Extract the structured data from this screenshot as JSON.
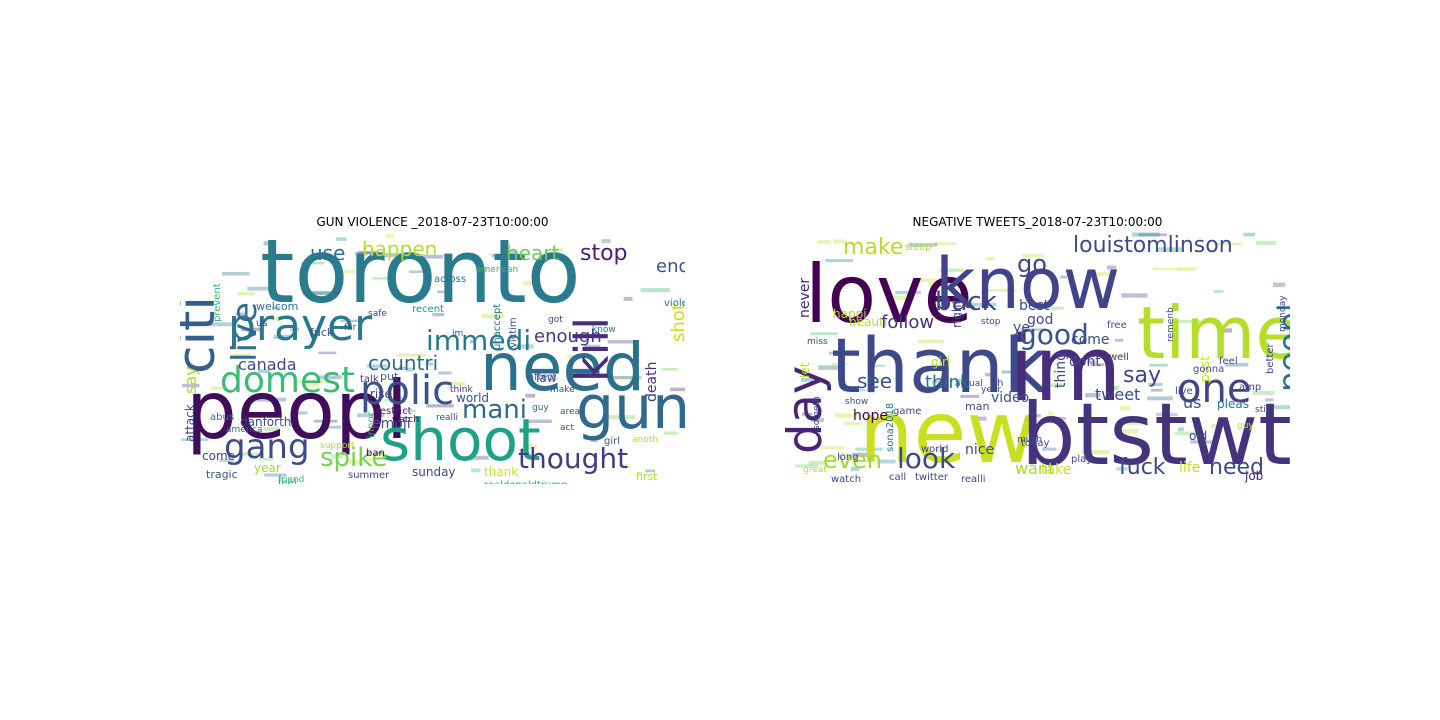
{
  "figure": {
    "left": {
      "title": "GUN VIOLENCE _2018-07-23T10:00:00",
      "words": [
        {
          "text": "toronto",
          "color": "#2a7b8e"
        },
        {
          "text": "peopl",
          "color": "#3f0e5a"
        },
        {
          "text": "shoot",
          "color": "#1fa187"
        },
        {
          "text": "need",
          "color": "#2d708e"
        },
        {
          "text": "citi",
          "color": "#35608d"
        },
        {
          "text": "prayer",
          "color": "#2a788e"
        },
        {
          "text": "gun",
          "color": "#31688e"
        },
        {
          "text": "polic",
          "color": "#3b528b"
        },
        {
          "text": "domest",
          "color": "#3cbb75"
        },
        {
          "text": "live",
          "color": "#2e6e8e"
        },
        {
          "text": "gang",
          "color": "#3e4a89"
        },
        {
          "text": "kill",
          "color": "#472d7b"
        },
        {
          "text": "immedi",
          "color": "#2a788e"
        },
        {
          "text": "thought",
          "color": "#443983"
        },
        {
          "text": "spike",
          "color": "#7ad151"
        },
        {
          "text": "mani",
          "color": "#31688e"
        },
        {
          "text": "happen",
          "color": "#b5de2b"
        },
        {
          "text": "heart",
          "color": "#6ccd5a"
        },
        {
          "text": "stop",
          "color": "#482173"
        },
        {
          "text": "use",
          "color": "#2c728e"
        },
        {
          "text": "enough",
          "color": "#443983"
        },
        {
          "text": "countri",
          "color": "#31688e"
        },
        {
          "text": "canada",
          "color": "#3e4989"
        },
        {
          "text": "shot",
          "color": "#c8e020"
        },
        {
          "text": "end",
          "color": "#3b528b"
        },
        {
          "text": "say",
          "color": "#a5db36"
        },
        {
          "text": "death",
          "color": "#46337e"
        },
        {
          "text": "emoji",
          "color": "#3b528b"
        },
        {
          "text": "come",
          "color": "#414487"
        },
        {
          "text": "year",
          "color": "#a0da39"
        },
        {
          "text": "sunday",
          "color": "#3e4989"
        },
        {
          "text": "danforth",
          "color": "#3e4a89"
        },
        {
          "text": "rise",
          "color": "#414487"
        },
        {
          "text": "world",
          "color": "#3b528b"
        },
        {
          "text": "law",
          "color": "#3e4989"
        },
        {
          "text": "thank",
          "color": "#d0e11c"
        },
        {
          "text": "tragic",
          "color": "#3b528b"
        },
        {
          "text": "realdonaldtrump",
          "color": "#27ad81"
        },
        {
          "text": "summer",
          "color": "#414487"
        },
        {
          "text": "first",
          "color": "#addc30"
        },
        {
          "text": "attack",
          "color": "#3e4989"
        },
        {
          "text": "innoc",
          "color": "#35b779"
        },
        {
          "text": "restrict",
          "color": "#482475"
        },
        {
          "text": "ban",
          "color": "#440154"
        },
        {
          "text": "put",
          "color": "#31688e"
        },
        {
          "text": "talk",
          "color": "#46337e"
        },
        {
          "text": "fuck",
          "color": "#3b528b"
        },
        {
          "text": "welcom",
          "color": "#2c728e"
        },
        {
          "text": "us",
          "color": "#3e4989"
        },
        {
          "text": "feel",
          "color": "#20a486"
        },
        {
          "text": "abus",
          "color": "#2c728e"
        },
        {
          "text": "america",
          "color": "#31688e"
        },
        {
          "text": "prevent",
          "color": "#35b779"
        },
        {
          "text": "victim",
          "color": "#3b528b"
        },
        {
          "text": "unaccept",
          "color": "#2c728e"
        },
        {
          "text": "affect",
          "color": "#31688e"
        },
        {
          "text": "make",
          "color": "#3e4989"
        },
        {
          "text": "girl",
          "color": "#3b528b"
        },
        {
          "text": "across",
          "color": "#2c728e"
        },
        {
          "text": "violenc",
          "color": "#2c728e"
        },
        {
          "text": "recent",
          "color": "#21918c"
        },
        {
          "text": "safe",
          "color": "#3e4989"
        },
        {
          "text": "american",
          "color": "#35b779"
        },
        {
          "text": "got",
          "color": "#3e4989"
        },
        {
          "text": "think",
          "color": "#46337e"
        },
        {
          "text": "guy",
          "color": "#31688e"
        },
        {
          "text": "area",
          "color": "#3b528b"
        },
        {
          "text": "act",
          "color": "#3e4989"
        },
        {
          "text": "anoth",
          "color": "#b5de2b"
        },
        {
          "text": "watch",
          "color": "#440154"
        },
        {
          "text": "im",
          "color": "#3b528b"
        },
        {
          "text": "far",
          "color": "#3e4989"
        },
        {
          "text": "friend",
          "color": "#35b779"
        },
        {
          "text": "support",
          "color": "#b5de2b"
        },
        {
          "text": "realli",
          "color": "#3e4989"
        },
        {
          "text": "know",
          "color": "#2c728e"
        }
      ]
    },
    "right": {
      "title": "NEGATIVE TWEETS_2018-07-23T10:00:00",
      "words": [
        {
          "text": "love",
          "color": "#440154"
        },
        {
          "text": "know",
          "color": "#414487"
        },
        {
          "text": "thank",
          "color": "#3e4989"
        },
        {
          "text": "im",
          "color": "#472d7b"
        },
        {
          "text": "time",
          "color": "#b5de2b"
        },
        {
          "text": "new",
          "color": "#c8e020"
        },
        {
          "text": "btstwt",
          "color": "#46337e"
        },
        {
          "text": "day",
          "color": "#482475"
        },
        {
          "text": "one",
          "color": "#414487"
        },
        {
          "text": "good",
          "color": "#3b528b"
        },
        {
          "text": "back",
          "color": "#414487"
        },
        {
          "text": "look",
          "color": "#3e4989"
        },
        {
          "text": "peopl",
          "color": "#2c728e"
        },
        {
          "text": "louistomlinson",
          "color": "#3e4989"
        },
        {
          "text": "make",
          "color": "#b5de2b"
        },
        {
          "text": "even",
          "color": "#a0da39"
        },
        {
          "text": "go",
          "color": "#414487"
        },
        {
          "text": "say",
          "color": "#414487"
        },
        {
          "text": "see",
          "color": "#3b528b"
        },
        {
          "text": "need",
          "color": "#3e4989"
        },
        {
          "text": "fuck",
          "color": "#3e4989"
        },
        {
          "text": "follow",
          "color": "#46337e"
        },
        {
          "text": "think",
          "color": "#2c728e"
        },
        {
          "text": "want",
          "color": "#a5db36"
        },
        {
          "text": "take",
          "color": "#d0e11c"
        },
        {
          "text": "tweet",
          "color": "#3e4989"
        },
        {
          "text": "best",
          "color": "#3e4989"
        },
        {
          "text": "dont",
          "color": "#3e4989"
        },
        {
          "text": "come",
          "color": "#3e4989"
        },
        {
          "text": "never",
          "color": "#482475"
        },
        {
          "text": "happi",
          "color": "#addc30"
        },
        {
          "text": "beauti",
          "color": "#b5de2b"
        },
        {
          "text": "hope",
          "color": "#440154"
        },
        {
          "text": "post",
          "color": "#d0e11c"
        },
        {
          "text": "god",
          "color": "#3e4989"
        },
        {
          "text": "us",
          "color": "#3b528b"
        },
        {
          "text": "thing",
          "color": "#3e4989"
        },
        {
          "text": "video",
          "color": "#3b528b"
        },
        {
          "text": "ye",
          "color": "#3e4989"
        },
        {
          "text": "let",
          "color": "#b5de2b"
        },
        {
          "text": "right",
          "color": "#3e4989"
        },
        {
          "text": "life",
          "color": "#c8e020"
        },
        {
          "text": "job",
          "color": "#482475"
        },
        {
          "text": "old",
          "color": "#3e4989"
        },
        {
          "text": "amp",
          "color": "#3e4989"
        },
        {
          "text": "pleas",
          "color": "#2c728e"
        },
        {
          "text": "nice",
          "color": "#3e4989"
        },
        {
          "text": "watch",
          "color": "#3e4989"
        },
        {
          "text": "call",
          "color": "#3e4989"
        },
        {
          "text": "twitter",
          "color": "#3e4989"
        },
        {
          "text": "realli",
          "color": "#3e4989"
        },
        {
          "text": "long",
          "color": "#3e4989"
        },
        {
          "text": "sona2018",
          "color": "#2c728e"
        },
        {
          "text": "play",
          "color": "#3e4989"
        },
        {
          "text": "today",
          "color": "#3e4989"
        },
        {
          "text": "live",
          "color": "#3e4989"
        },
        {
          "text": "well",
          "color": "#3e4989"
        },
        {
          "text": "girl",
          "color": "#b5de2b"
        },
        {
          "text": "man",
          "color": "#3e4989"
        },
        {
          "text": "oh",
          "color": "#3e4989"
        },
        {
          "text": "game",
          "color": "#3e4989"
        },
        {
          "text": "world",
          "color": "#3e4989"
        },
        {
          "text": "gonna",
          "color": "#3e4989"
        },
        {
          "text": "feel",
          "color": "#3e4989"
        },
        {
          "text": "remenb",
          "color": "#3e4989"
        },
        {
          "text": "better",
          "color": "#3e4989"
        },
        {
          "text": "sleep",
          "color": "#b5de2b"
        },
        {
          "text": "year",
          "color": "#3e4989"
        },
        {
          "text": "stop",
          "color": "#3e4989"
        },
        {
          "text": "actual",
          "color": "#3e4989"
        },
        {
          "text": "much",
          "color": "#3e4989"
        },
        {
          "text": "free",
          "color": "#3e4989"
        },
        {
          "text": "monday",
          "color": "#3e4989"
        },
        {
          "text": "guy",
          "color": "#c8e020"
        },
        {
          "text": "still",
          "color": "#3e4989"
        },
        {
          "text": "miss",
          "color": "#3e4989"
        },
        {
          "text": "someth",
          "color": "#3e4989"
        },
        {
          "text": "show",
          "color": "#3e4989"
        },
        {
          "text": "great",
          "color": "#b5de2b"
        }
      ]
    }
  }
}
